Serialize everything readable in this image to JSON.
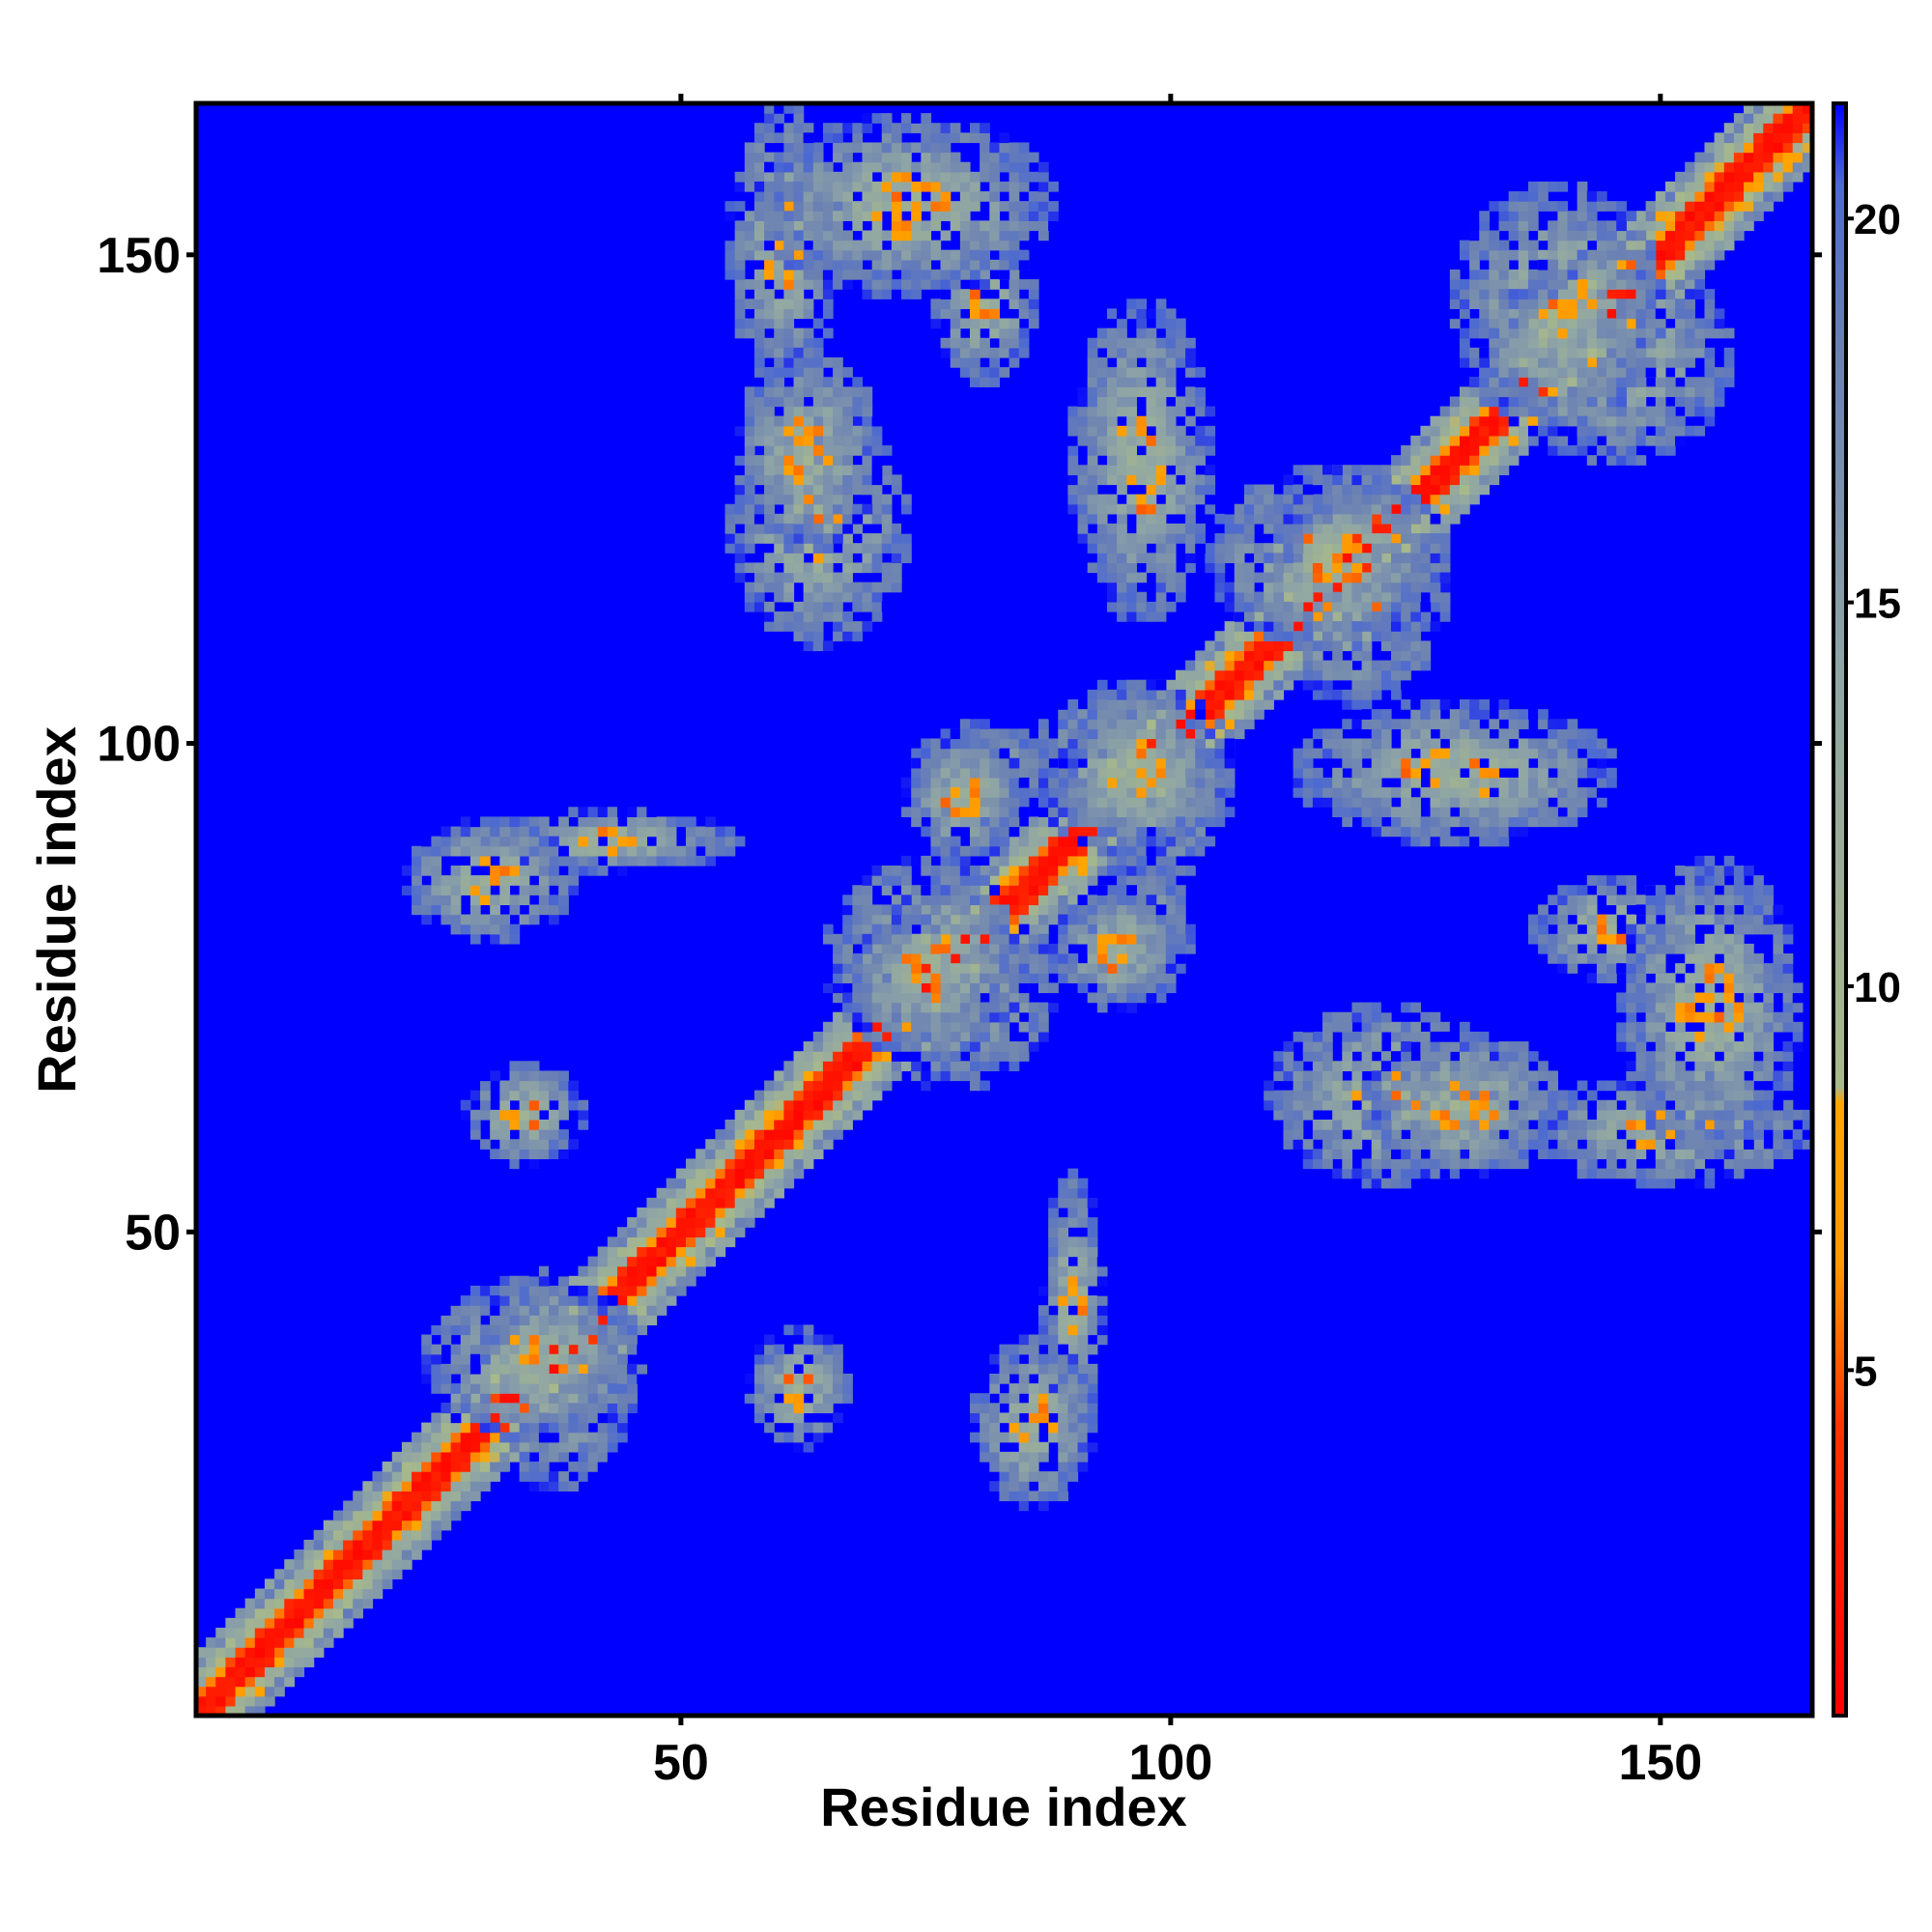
{
  "chart_data": {
    "type": "heatmap",
    "title": "",
    "xlabel": "Residue index",
    "ylabel": "Residue index",
    "xlim": [
      1,
      165
    ],
    "ylim": [
      1,
      165
    ],
    "x_ticks": [
      50,
      100,
      150
    ],
    "y_ticks": [
      50,
      100,
      150
    ],
    "colorbar": {
      "ticks": [
        5,
        10,
        15,
        20
      ],
      "range": [
        0.5,
        21.5
      ],
      "colors": [
        {
          "stop": 0.0,
          "color": "#ff0000"
        },
        {
          "stop": 0.18,
          "color": "#ff3300"
        },
        {
          "stop": 0.28,
          "color": "#ff9900"
        },
        {
          "stop": 0.38,
          "color": "#ffa500"
        },
        {
          "stop": 0.39,
          "color": "#a8b98a"
        },
        {
          "stop": 0.65,
          "color": "#8fa5a5"
        },
        {
          "stop": 0.85,
          "color": "#6a80b4"
        },
        {
          "stop": 0.95,
          "color": "#4d6ad0"
        },
        {
          "stop": 1.0,
          "color": "#0000ff"
        }
      ]
    },
    "background_color": "#0000ff",
    "contact_regions": [
      {
        "x": [
          1,
          165
        ],
        "y": [
          1,
          165
        ],
        "kind": "diagonal"
      },
      {
        "x": [
          24,
          46
        ],
        "y": [
          29,
          45
        ],
        "kind": "beta-sheet"
      },
      {
        "x": [
          65,
          85
        ],
        "y": [
          68,
          88
        ],
        "kind": "helix"
      },
      {
        "x": [
          86,
          106
        ],
        "y": [
          89,
          106
        ],
        "kind": "helix"
      },
      {
        "x": [
          104,
          128
        ],
        "y": [
          110,
          128
        ],
        "kind": "helix"
      },
      {
        "x": [
          129,
          150
        ],
        "y": [
          132,
          157
        ],
        "kind": "helix"
      },
      {
        "x": [
          30,
          56
        ],
        "y": [
          87,
          93
        ],
        "kind": "off-diagonal"
      },
      {
        "x": [
          57,
          67
        ],
        "y": [
          28,
          40
        ],
        "kind": "off-diagonal"
      },
      {
        "x": [
          80,
          92
        ],
        "y": [
          22,
          39
        ],
        "kind": "off-diagonal"
      },
      {
        "x": [
          137,
          153
        ],
        "y": [
          76,
          86
        ],
        "kind": "off-diagonal"
      },
      {
        "x": [
          137,
          165
        ],
        "y": [
          55,
          66
        ],
        "kind": "off-diagonal"
      },
      {
        "x": [
          73,
          88
        ],
        "y": [
          92,
          102
        ],
        "kind": "off-diagonal"
      },
      {
        "x": [
          88,
          101
        ],
        "y": [
          73,
          85
        ],
        "kind": "off-diagonal"
      },
      {
        "x": [
          55,
          73
        ],
        "y": [
          110,
          134
        ],
        "kind": "off-diagonal"
      },
      {
        "x": [
          58,
          88
        ],
        "y": [
          146,
          164
        ],
        "kind": "off-diagonal"
      },
      {
        "x": [
          113,
          145
        ],
        "y": [
          90,
          104
        ],
        "kind": "off-diagonal"
      },
      {
        "x": [
          120,
          140
        ],
        "y": [
          56,
          70
        ],
        "kind": "off-diagonal"
      }
    ]
  }
}
